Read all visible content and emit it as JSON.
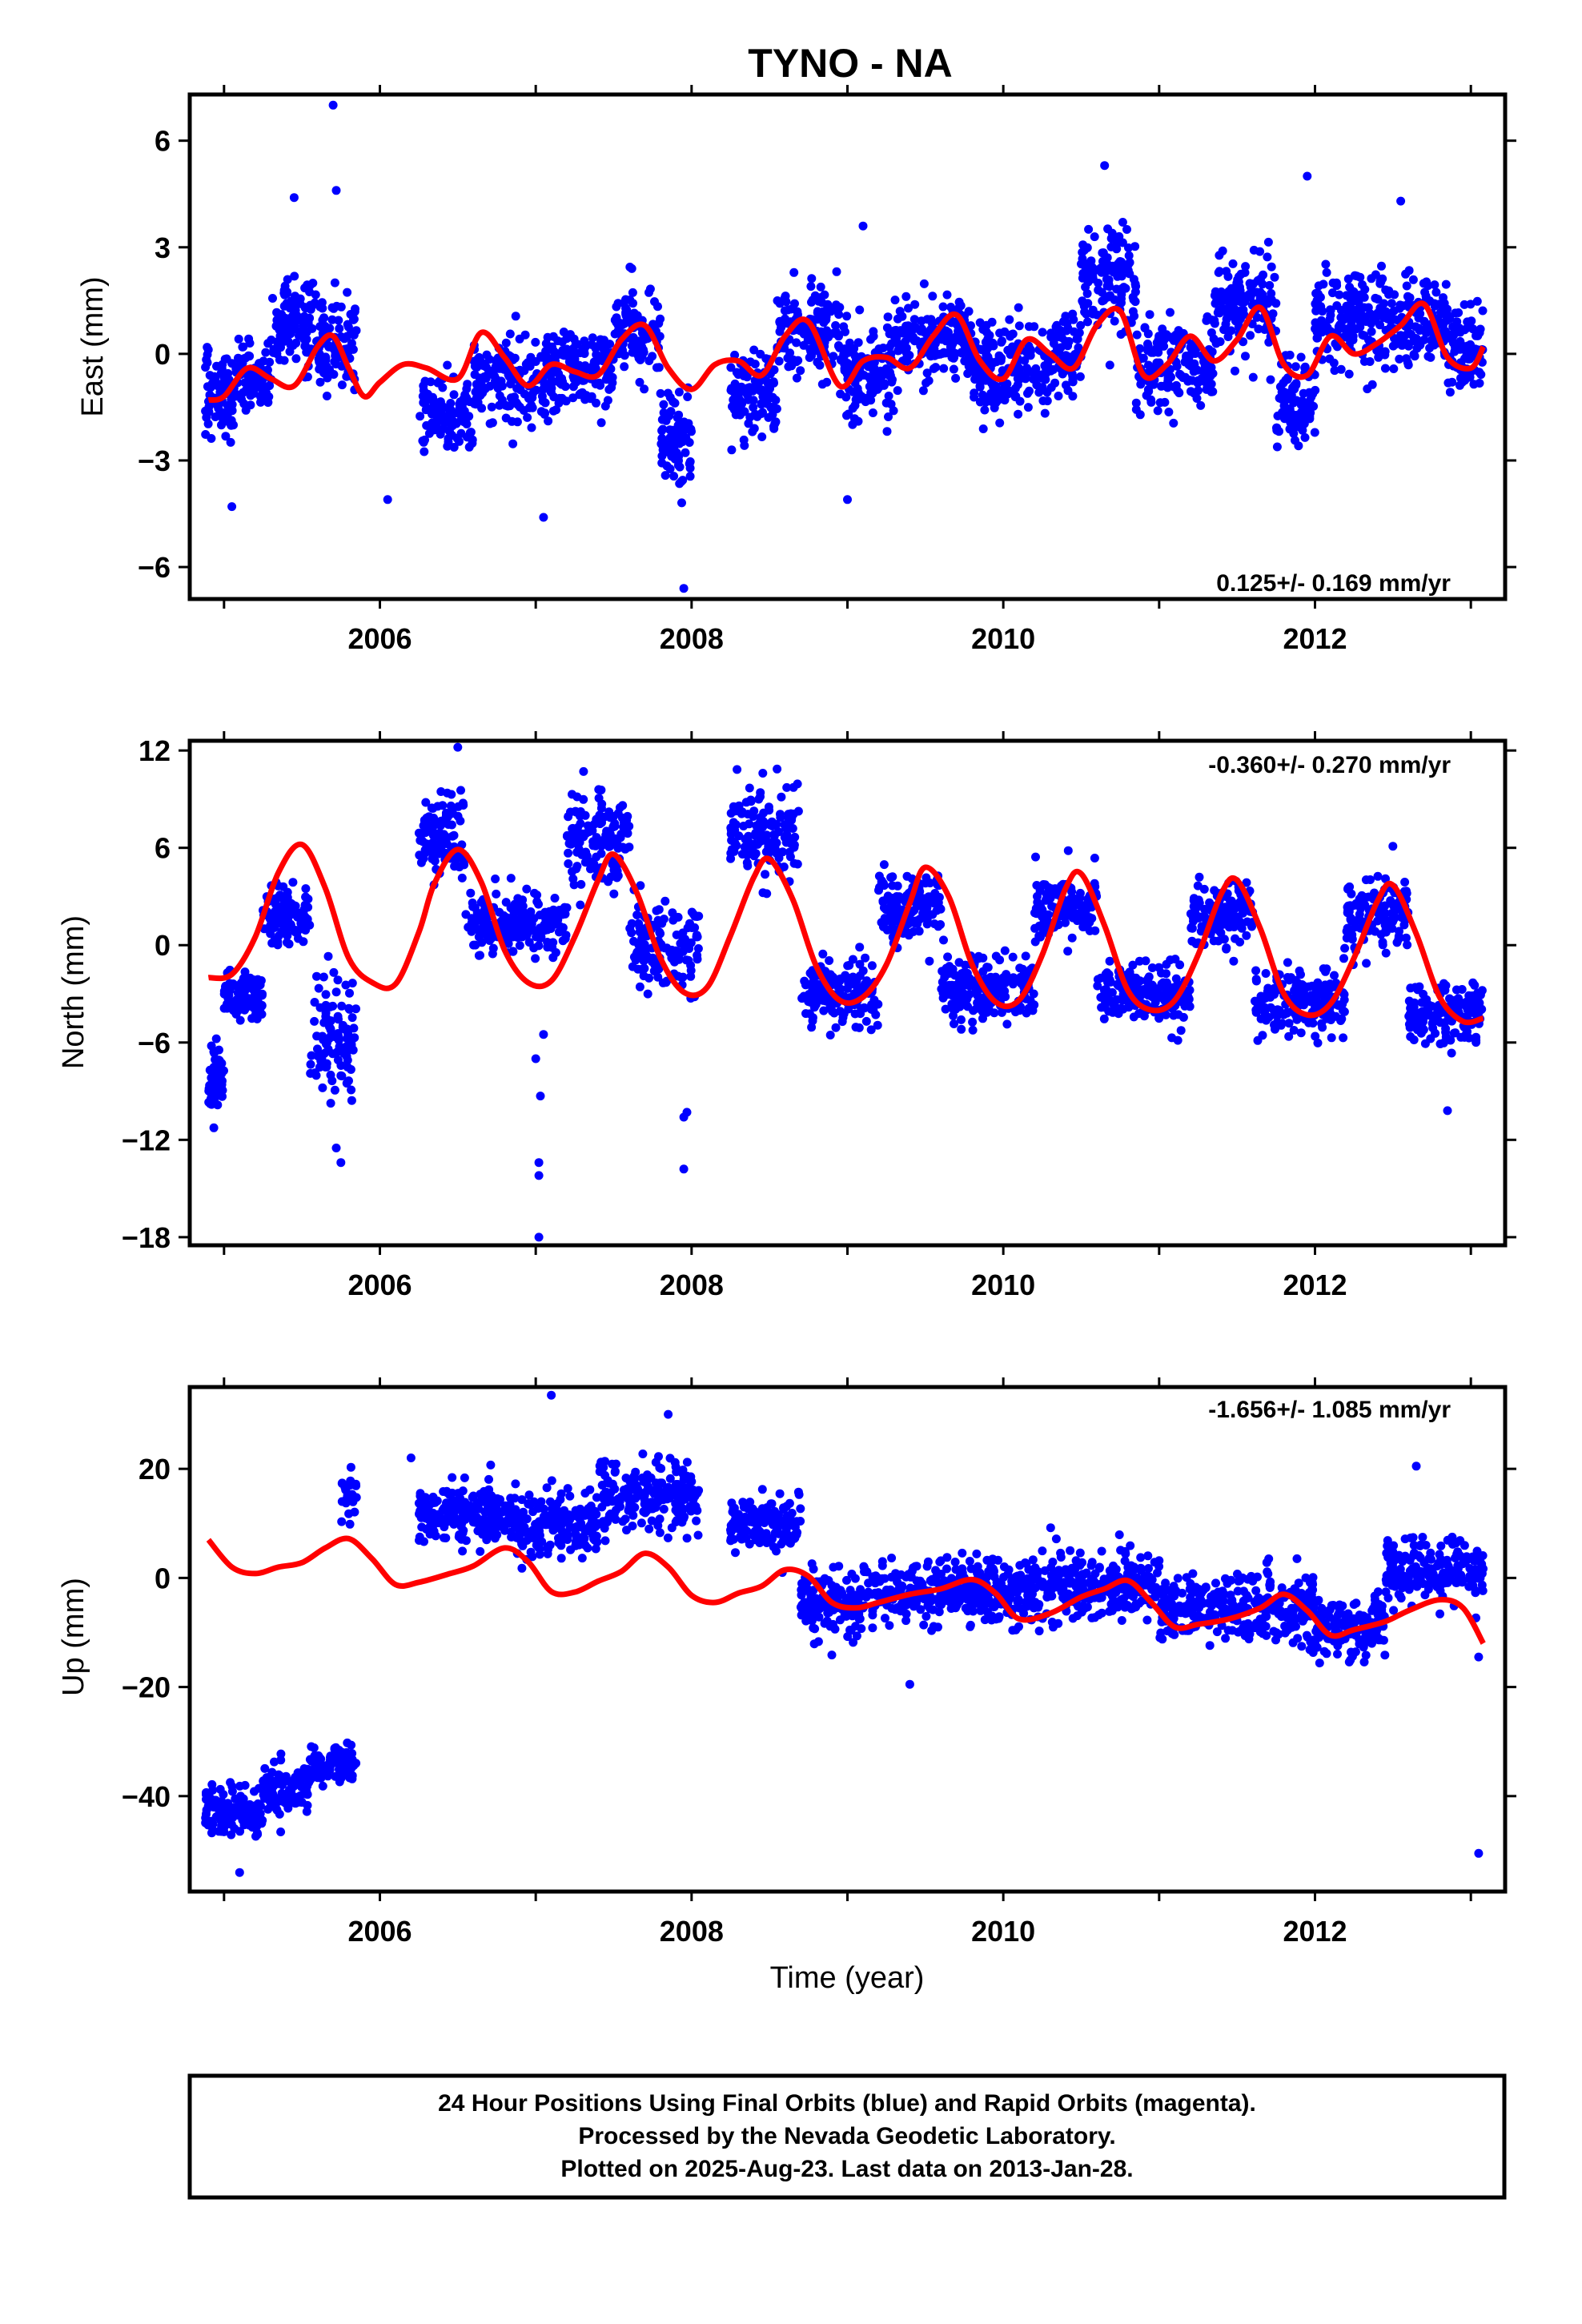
{
  "title": "TYNO - NA",
  "xlabel": "Time (year)",
  "caption": {
    "line1": "24 Hour Positions Using Final Orbits (blue) and Rapid Orbits (magenta).",
    "line2": "Processed by the Nevada Geodetic Laboratory.",
    "line3": "Plotted on 2025-Aug-23. Last data on 2013-Jan-28."
  },
  "colors": {
    "points": "#0000ff",
    "model": "#ff0000",
    "frame": "#000000"
  },
  "chart_data": [
    {
      "type": "scatter",
      "panel": "east",
      "ylabel": "East (mm)",
      "rate": "0.125+/- 0.169 mm/yr",
      "rate_position": "bottom-right",
      "xlim": [
        2004.78,
        2013.22
      ],
      "ylim": [
        -6.9,
        7.3
      ],
      "yticks": [
        -6,
        -3,
        0,
        3,
        6
      ],
      "ytick_labels": [
        "−6",
        "−3",
        "0",
        "3",
        "6"
      ],
      "xticks": [
        2006,
        2008,
        2010,
        2012
      ],
      "model": {
        "x": [
          2004.9,
          2005.0,
          2005.15,
          2005.3,
          2005.45,
          2005.6,
          2005.7,
          2005.8,
          2005.9,
          2006.0,
          2006.15,
          2006.3,
          2006.5,
          2006.65,
          2006.8,
          2006.95,
          2007.1,
          2007.25,
          2007.4,
          2007.55,
          2007.7,
          2007.85,
          2008.0,
          2008.15,
          2008.3,
          2008.45,
          2008.6,
          2008.75,
          2008.95,
          2009.1,
          2009.25,
          2009.4,
          2009.55,
          2009.7,
          2009.85,
          2010.0,
          2010.15,
          2010.3,
          2010.45,
          2010.6,
          2010.75,
          2010.9,
          2011.05,
          2011.2,
          2011.35,
          2011.5,
          2011.65,
          2011.8,
          2011.95,
          2012.1,
          2012.25,
          2012.4,
          2012.55,
          2012.7,
          2012.85,
          2013.0,
          2013.08
        ],
        "y": [
          -1.3,
          -1.2,
          -0.4,
          -0.7,
          -0.9,
          0.2,
          0.5,
          -0.4,
          -1.2,
          -0.8,
          -0.3,
          -0.4,
          -0.7,
          0.6,
          -0.1,
          -0.9,
          -0.3,
          -0.5,
          -0.6,
          0.4,
          0.8,
          -0.4,
          -1.0,
          -0.3,
          -0.2,
          -0.6,
          0.5,
          0.9,
          -0.9,
          -0.2,
          -0.1,
          -0.4,
          0.5,
          1.1,
          -0.2,
          -0.7,
          0.4,
          0.0,
          -0.4,
          0.8,
          1.2,
          -0.6,
          -0.3,
          0.5,
          -0.2,
          0.4,
          1.3,
          -0.3,
          -0.6,
          0.5,
          0.0,
          0.3,
          0.8,
          1.4,
          -0.1,
          -0.4,
          0.2
        ]
      },
      "points_note": "dense daily positions; sampled from the plotted distribution",
      "segments": [
        {
          "x0": 2004.88,
          "x1": 2005.05,
          "center": -1.2,
          "spread": 1.0,
          "n": 70
        },
        {
          "x0": 2005.05,
          "x1": 2005.3,
          "center": -0.8,
          "spread": 0.9,
          "n": 90
        },
        {
          "x0": 2005.3,
          "x1": 2005.6,
          "center": 0.9,
          "spread": 1.1,
          "n": 110
        },
        {
          "x0": 2005.6,
          "x1": 2005.85,
          "center": 0.2,
          "spread": 1.3,
          "n": 90
        },
        {
          "x0": 2006.25,
          "x1": 2006.6,
          "center": -1.7,
          "spread": 0.8,
          "n": 110
        },
        {
          "x0": 2006.6,
          "x1": 2007.1,
          "center": -0.6,
          "spread": 1.0,
          "n": 170
        },
        {
          "x0": 2007.1,
          "x1": 2007.5,
          "center": -0.4,
          "spread": 0.9,
          "n": 140
        },
        {
          "x0": 2007.5,
          "x1": 2007.8,
          "center": 0.5,
          "spread": 1.0,
          "n": 100
        },
        {
          "x0": 2007.8,
          "x1": 2008.0,
          "center": -2.4,
          "spread": 1.1,
          "n": 80
        },
        {
          "x0": 2008.25,
          "x1": 2008.55,
          "center": -1.2,
          "spread": 0.9,
          "n": 100
        },
        {
          "x0": 2008.55,
          "x1": 2008.95,
          "center": 0.6,
          "spread": 1.0,
          "n": 140
        },
        {
          "x0": 2008.95,
          "x1": 2009.3,
          "center": -0.6,
          "spread": 1.0,
          "n": 120
        },
        {
          "x0": 2009.3,
          "x1": 2009.8,
          "center": 0.4,
          "spread": 0.9,
          "n": 170
        },
        {
          "x0": 2009.8,
          "x1": 2010.3,
          "center": -0.4,
          "spread": 1.1,
          "n": 170
        },
        {
          "x0": 2010.3,
          "x1": 2010.5,
          "center": 0.1,
          "spread": 1.0,
          "n": 70
        },
        {
          "x0": 2010.5,
          "x1": 2010.85,
          "center": 2.1,
          "spread": 1.2,
          "n": 120
        },
        {
          "x0": 2010.85,
          "x1": 2011.35,
          "center": -0.3,
          "spread": 1.0,
          "n": 170
        },
        {
          "x0": 2011.35,
          "x1": 2011.75,
          "center": 1.4,
          "spread": 1.1,
          "n": 140
        },
        {
          "x0": 2011.75,
          "x1": 2012.0,
          "center": -1.4,
          "spread": 1.1,
          "n": 90
        },
        {
          "x0": 2012.0,
          "x1": 2012.45,
          "center": 1.0,
          "spread": 1.1,
          "n": 150
        },
        {
          "x0": 2012.45,
          "x1": 2012.85,
          "center": 0.8,
          "spread": 1.1,
          "n": 140
        },
        {
          "x0": 2012.85,
          "x1": 2013.08,
          "center": 0.2,
          "spread": 1.0,
          "n": 80
        }
      ],
      "outliers": [
        [
          2005.7,
          7.0
        ],
        [
          2005.72,
          4.6
        ],
        [
          2005.45,
          4.4
        ],
        [
          2007.95,
          -6.6
        ],
        [
          2007.05,
          -4.6
        ],
        [
          2009.0,
          -4.1
        ],
        [
          2005.05,
          -4.3
        ],
        [
          2010.65,
          5.3
        ],
        [
          2011.95,
          5.0
        ],
        [
          2006.05,
          -4.1
        ],
        [
          2009.1,
          3.6
        ],
        [
          2012.55,
          4.3
        ]
      ]
    },
    {
      "type": "scatter",
      "panel": "north",
      "ylabel": "North (mm)",
      "rate": "-0.360+/- 0.270 mm/yr",
      "rate_position": "top-right",
      "xlim": [
        2004.78,
        2013.22
      ],
      "ylim": [
        -18.5,
        12.6
      ],
      "yticks": [
        -18,
        -12,
        -6,
        0,
        6,
        12
      ],
      "ytick_labels": [
        "−18",
        "−12",
        "−6",
        "0",
        "6",
        "12"
      ],
      "xticks": [
        2006,
        2008,
        2010,
        2012
      ],
      "model": {
        "x": [
          2004.9,
          2005.05,
          2005.2,
          2005.35,
          2005.5,
          2005.65,
          2005.8,
          2005.95,
          2006.1,
          2006.25,
          2006.35,
          2006.5,
          2006.65,
          2006.8,
          2006.95,
          2007.1,
          2007.25,
          2007.4,
          2007.5,
          2007.65,
          2007.8,
          2007.95,
          2008.1,
          2008.25,
          2008.4,
          2008.5,
          2008.65,
          2008.8,
          2008.95,
          2009.1,
          2009.25,
          2009.4,
          2009.5,
          2009.65,
          2009.8,
          2009.95,
          2010.1,
          2010.25,
          2010.4,
          2010.5,
          2010.65,
          2010.8,
          2010.95,
          2011.1,
          2011.25,
          2011.4,
          2011.5,
          2011.65,
          2011.8,
          2011.95,
          2012.1,
          2012.25,
          2012.4,
          2012.5,
          2012.65,
          2012.8,
          2012.95,
          2013.08
        ],
        "y": [
          -2.0,
          -1.8,
          0.5,
          4.5,
          6.2,
          3.5,
          -0.8,
          -2.3,
          -2.4,
          0.8,
          3.8,
          5.9,
          3.9,
          -0.3,
          -2.3,
          -2.2,
          0.5,
          4.0,
          5.6,
          3.2,
          -0.8,
          -2.9,
          -2.6,
          0.6,
          4.2,
          5.3,
          2.8,
          -1.3,
          -3.4,
          -3.2,
          -1.2,
          2.6,
          4.8,
          3.0,
          -1.2,
          -3.5,
          -3.4,
          -0.6,
          3.5,
          4.4,
          1.2,
          -2.8,
          -4.0,
          -3.4,
          -0.6,
          3.2,
          4.0,
          1.0,
          -3.0,
          -4.3,
          -3.6,
          -0.8,
          2.7,
          3.7,
          0.7,
          -3.2,
          -4.7,
          -4.5
        ]
      },
      "points_note": "dense daily positions; sampled from the plotted distribution",
      "segments": [
        {
          "x0": 2004.9,
          "x1": 2005.0,
          "center": -8.5,
          "spread": 1.6,
          "n": 60
        },
        {
          "x0": 2005.0,
          "x1": 2005.25,
          "center": -3.2,
          "spread": 1.3,
          "n": 90
        },
        {
          "x0": 2005.25,
          "x1": 2005.55,
          "center": 1.8,
          "spread": 1.5,
          "n": 110
        },
        {
          "x0": 2005.55,
          "x1": 2005.85,
          "center": -6.0,
          "spread": 3.0,
          "n": 100
        },
        {
          "x0": 2006.25,
          "x1": 2006.55,
          "center": 6.5,
          "spread": 2.0,
          "n": 110
        },
        {
          "x0": 2006.55,
          "x1": 2007.2,
          "center": 1.2,
          "spread": 1.6,
          "n": 200
        },
        {
          "x0": 2007.2,
          "x1": 2007.6,
          "center": 6.5,
          "spread": 2.4,
          "n": 130
        },
        {
          "x0": 2007.6,
          "x1": 2008.05,
          "center": 0.0,
          "spread": 2.5,
          "n": 130
        },
        {
          "x0": 2008.25,
          "x1": 2008.7,
          "center": 7.0,
          "spread": 2.3,
          "n": 140
        },
        {
          "x0": 2008.7,
          "x1": 2009.2,
          "center": -3.0,
          "spread": 1.6,
          "n": 160
        },
        {
          "x0": 2009.2,
          "x1": 2009.6,
          "center": 2.6,
          "spread": 1.8,
          "n": 130
        },
        {
          "x0": 2009.6,
          "x1": 2010.2,
          "center": -2.6,
          "spread": 1.6,
          "n": 190
        },
        {
          "x0": 2010.2,
          "x1": 2010.6,
          "center": 2.4,
          "spread": 1.8,
          "n": 130
        },
        {
          "x0": 2010.6,
          "x1": 2011.2,
          "center": -3.0,
          "spread": 1.6,
          "n": 190
        },
        {
          "x0": 2011.2,
          "x1": 2011.6,
          "center": 2.0,
          "spread": 1.8,
          "n": 130
        },
        {
          "x0": 2011.6,
          "x1": 2012.2,
          "center": -3.5,
          "spread": 1.6,
          "n": 190
        },
        {
          "x0": 2012.2,
          "x1": 2012.6,
          "center": 1.8,
          "spread": 1.8,
          "n": 130
        },
        {
          "x0": 2012.6,
          "x1": 2013.08,
          "center": -4.2,
          "spread": 1.6,
          "n": 150
        }
      ],
      "outliers": [
        [
          2007.02,
          -18.0
        ],
        [
          2007.02,
          -14.2
        ],
        [
          2007.02,
          -13.4
        ],
        [
          2007.03,
          -9.3
        ],
        [
          2007.0,
          -7.0
        ],
        [
          2007.05,
          -5.5
        ],
        [
          2007.95,
          -13.8
        ],
        [
          2007.95,
          -10.6
        ],
        [
          2007.97,
          -10.3
        ],
        [
          2006.5,
          12.2
        ],
        [
          2005.75,
          -13.4
        ],
        [
          2005.72,
          -12.5
        ],
        [
          2012.5,
          6.1
        ],
        [
          2012.85,
          -10.2
        ]
      ]
    },
    {
      "type": "scatter",
      "panel": "up",
      "ylabel": "Up (mm)",
      "rate": "-1.656+/- 1.085 mm/yr",
      "rate_position": "top-right",
      "xlim": [
        2004.78,
        2013.22
      ],
      "ylim": [
        -57.5,
        35.0
      ],
      "yticks": [
        -40,
        -20,
        0,
        20
      ],
      "ytick_labels": [
        "−40",
        "−20",
        "0",
        "20"
      ],
      "xticks": [
        2006,
        2008,
        2010,
        2012
      ],
      "model": {
        "x": [
          2004.9,
          2005.05,
          2005.2,
          2005.35,
          2005.5,
          2005.65,
          2005.8,
          2005.95,
          2006.1,
          2006.25,
          2006.45,
          2006.6,
          2006.8,
          2006.95,
          2007.1,
          2007.25,
          2007.4,
          2007.55,
          2007.7,
          2007.85,
          2008.0,
          2008.15,
          2008.3,
          2008.45,
          2008.6,
          2008.75,
          2008.9,
          2009.05,
          2009.2,
          2009.4,
          2009.6,
          2009.8,
          2009.95,
          2010.1,
          2010.3,
          2010.5,
          2010.65,
          2010.8,
          2010.95,
          2011.1,
          2011.25,
          2011.45,
          2011.65,
          2011.8,
          2011.95,
          2012.1,
          2012.25,
          2012.45,
          2012.6,
          2012.8,
          2012.95,
          2013.08
        ],
        "y": [
          7.0,
          2.0,
          0.8,
          2.0,
          2.8,
          5.5,
          7.2,
          3.5,
          -1.2,
          -0.8,
          0.8,
          2.2,
          5.5,
          3.0,
          -2.5,
          -2.6,
          -0.6,
          1.2,
          4.5,
          2.0,
          -3.2,
          -4.5,
          -2.8,
          -1.5,
          1.5,
          0.3,
          -4.5,
          -5.5,
          -4.5,
          -3.0,
          -2.0,
          -0.3,
          -2.8,
          -7.5,
          -6.5,
          -3.5,
          -2.0,
          -0.5,
          -4.5,
          -9.0,
          -8.5,
          -7.5,
          -5.5,
          -3.0,
          -6.0,
          -10.5,
          -9.5,
          -8.0,
          -6.0,
          -4.0,
          -5.5,
          -12.0
        ]
      },
      "points_note": "dense daily positions; sampled from the plotted distribution",
      "segments": [
        {
          "x0": 2004.88,
          "x1": 2005.25,
          "center": -43.0,
          "spread": 3.5,
          "n": 130
        },
        {
          "x0": 2005.25,
          "x1": 2005.55,
          "center": -39.0,
          "spread": 3.5,
          "n": 110
        },
        {
          "x0": 2005.55,
          "x1": 2005.85,
          "center": -34.0,
          "spread": 3.0,
          "n": 100
        },
        {
          "x0": 2005.75,
          "x1": 2005.85,
          "center": 15.0,
          "spread": 3.5,
          "n": 25
        },
        {
          "x0": 2006.25,
          "x1": 2006.8,
          "center": 12.0,
          "spread": 4.5,
          "n": 180
        },
        {
          "x0": 2006.8,
          "x1": 2007.4,
          "center": 10.0,
          "spread": 5.0,
          "n": 200
        },
        {
          "x0": 2007.4,
          "x1": 2008.05,
          "center": 15.0,
          "spread": 5.0,
          "n": 200
        },
        {
          "x0": 2008.25,
          "x1": 2008.7,
          "center": 10.0,
          "spread": 4.0,
          "n": 140
        },
        {
          "x0": 2008.7,
          "x1": 2009.1,
          "center": -5.0,
          "spread": 5.0,
          "n": 140
        },
        {
          "x0": 2009.1,
          "x1": 2010.1,
          "center": -2.5,
          "spread": 5.0,
          "n": 330
        },
        {
          "x0": 2010.1,
          "x1": 2011.0,
          "center": -1.5,
          "spread": 5.0,
          "n": 300
        },
        {
          "x0": 2011.0,
          "x1": 2012.0,
          "center": -5.5,
          "spread": 5.0,
          "n": 330
        },
        {
          "x0": 2012.0,
          "x1": 2012.45,
          "center": -8.5,
          "spread": 4.5,
          "n": 150
        },
        {
          "x0": 2012.45,
          "x1": 2013.08,
          "center": 1.0,
          "spread": 5.0,
          "n": 200
        }
      ],
      "outliers": [
        [
          2007.1,
          33.5
        ],
        [
          2013.05,
          -50.5
        ],
        [
          2005.1,
          -54.0
        ],
        [
          2007.85,
          30.0
        ],
        [
          2012.65,
          20.5
        ],
        [
          2006.2,
          22.0
        ],
        [
          2009.4,
          -19.5
        ],
        [
          2013.05,
          -14.5
        ]
      ]
    }
  ]
}
